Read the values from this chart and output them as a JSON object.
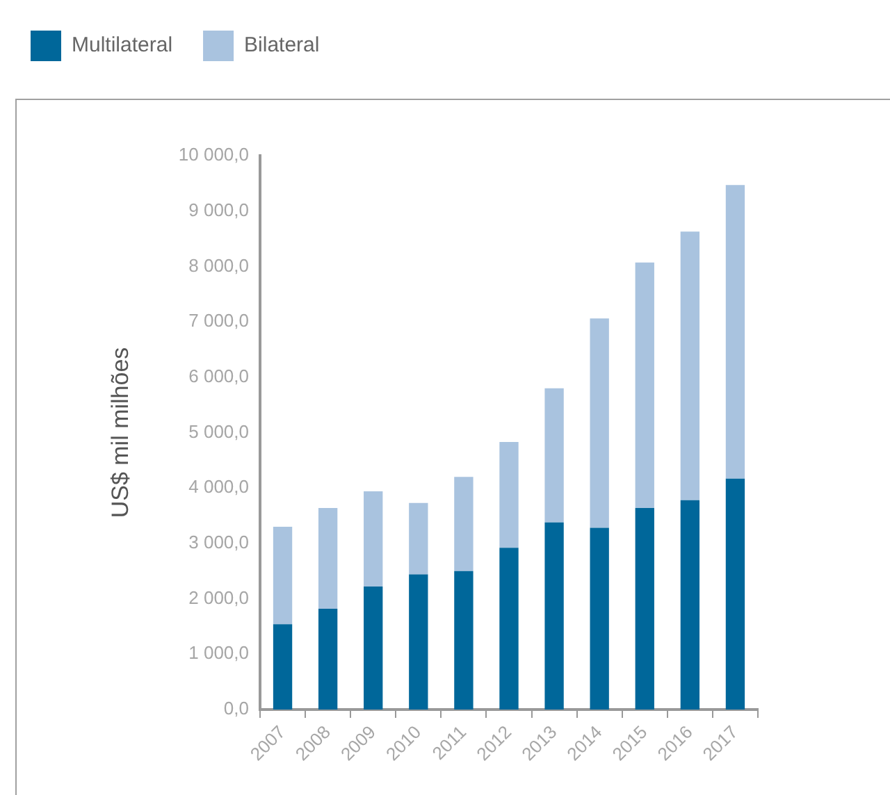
{
  "chart_data": {
    "type": "bar",
    "stacked": true,
    "ylabel": "US$ mil milhões",
    "legend": "top left",
    "grid": false,
    "categories": [
      "2007",
      "2008",
      "2009",
      "2010",
      "2011",
      "2012",
      "2013",
      "2014",
      "2015",
      "2016",
      "2017"
    ],
    "series": [
      {
        "name": "Multilateral",
        "color": "#00679a",
        "values": [
          1540,
          1820,
          2220,
          2440,
          2500,
          2920,
          3380,
          3280,
          3640,
          3780,
          4170
        ]
      },
      {
        "name": "Bilateral",
        "color": "#a9c3df",
        "values": [
          1760,
          1820,
          1720,
          1290,
          1700,
          1910,
          2420,
          3780,
          4430,
          4850,
          5300
        ]
      }
    ],
    "ylim": [
      0,
      10000
    ],
    "yticks": [
      {
        "value": 0,
        "label": "0,0"
      },
      {
        "value": 1000,
        "label": "1 000,0"
      },
      {
        "value": 2000,
        "label": "2 000,0"
      },
      {
        "value": 3000,
        "label": "3 000,0"
      },
      {
        "value": 4000,
        "label": "4 000,0"
      },
      {
        "value": 5000,
        "label": "5 000,0"
      },
      {
        "value": 6000,
        "label": "6 000,0"
      },
      {
        "value": 7000,
        "label": "7 000,0"
      },
      {
        "value": 8000,
        "label": "8 000,0"
      },
      {
        "value": 9000,
        "label": "9 000,0"
      },
      {
        "value": 10000,
        "label": "10 000,0"
      }
    ]
  }
}
